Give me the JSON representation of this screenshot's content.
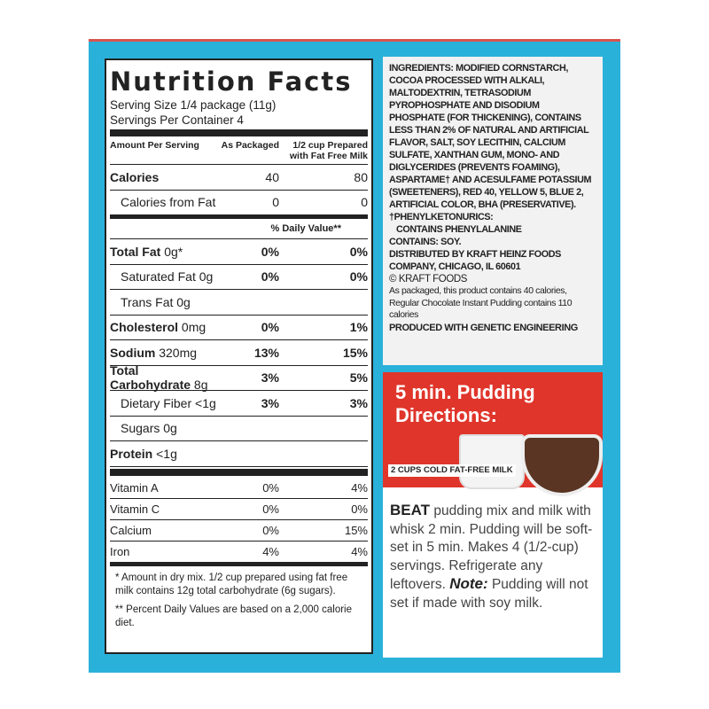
{
  "nutrition": {
    "title": "Nutrition Facts",
    "serving_size": "Serving Size 1/4 package (11g)",
    "servings": "Servings Per Container 4",
    "col_header": {
      "a": "Amount Per Serving",
      "b": "As Packaged",
      "c": "1/2 cup Prepared with Fat Free Milk"
    },
    "calories": {
      "label": "Calories",
      "b": "40",
      "c": "80"
    },
    "cal_fat": {
      "label": "Calories from Fat",
      "b": "0",
      "c": "0"
    },
    "dv_header": "% Daily Value**",
    "rows": [
      {
        "label": "Total Fat",
        "amt": "0g*",
        "b": "0%",
        "c": "0%"
      },
      {
        "label": "Saturated Fat 0g",
        "amt": "",
        "b": "0%",
        "c": "0%"
      },
      {
        "label": "Trans Fat 0g",
        "amt": "",
        "b": "",
        "c": ""
      },
      {
        "label": "Cholesterol",
        "amt": "0mg",
        "b": "0%",
        "c": "1%"
      },
      {
        "label": "Sodium",
        "amt": "320mg",
        "b": "13%",
        "c": "15%"
      },
      {
        "label": "Total Carbohydrate",
        "amt": "8g",
        "b": "3%",
        "c": "5%"
      },
      {
        "label": "Dietary Fiber <1g",
        "amt": "",
        "b": "3%",
        "c": "3%"
      },
      {
        "label": "Sugars 0g",
        "amt": "",
        "b": "",
        "c": ""
      },
      {
        "label": "Protein",
        "amt": "<1g",
        "b": "",
        "c": ""
      }
    ],
    "vitamins": [
      {
        "label": "Vitamin A",
        "b": "0%",
        "c": "4%"
      },
      {
        "label": "Vitamin C",
        "b": "0%",
        "c": "0%"
      },
      {
        "label": "Calcium",
        "b": "0%",
        "c": "15%"
      },
      {
        "label": "Iron",
        "b": "4%",
        "c": "4%"
      }
    ],
    "footnote1": "* Amount in dry mix. 1/2 cup prepared using fat free milk contains 12g total carbohydrate (6g sugars).",
    "footnote2": "** Percent Daily Values are based on a 2,000 calorie diet."
  },
  "ingredients": {
    "text": "INGREDIENTS: MODIFIED CORNSTARCH, COCOA PROCESSED WITH ALKALI, MALTODEXTRIN, TETRASODIUM PYROPHOSPHATE AND DISODIUM PHOSPHATE (FOR THICKENING), CONTAINS LESS THAN 2% OF NATURAL AND ARTIFICIAL FLAVOR, SALT, SOY LECITHIN, CALCIUM SULFATE, XANTHAN GUM, MONO- AND DIGLYCERIDES (PREVENTS FOAMING), ASPARTAME† AND ACESULFAME POTASSIUM (SWEETENERS), RED 40, YELLOW 5, BLUE 2, ARTIFICIAL COLOR, BHA (PRESERVATIVE).",
    "pku1": "†PHENYLKETONURICS:",
    "pku2": "CONTAINS PHENYLALANINE",
    "contains": "CONTAINS: SOY.",
    "distributed": "DISTRIBUTED BY KRAFT HEINZ FOODS COMPANY, CHICAGO, IL 60601",
    "copyright": "© KRAFT FOODS",
    "calorie_note": "As packaged, this product contains 40 calories, Regular Chocolate Instant Pudding contains 110 calories",
    "ge": "PRODUCED WITH GENETIC ENGINEERING"
  },
  "directions": {
    "title": "5 min. Pudding Directions:",
    "milk_label": "2 CUPS COLD FAT-FREE MILK",
    "beat": "BEAT",
    "body": "pudding mix and milk with whisk 2 min. Pudding will be soft-set in 5 min. Makes 4 (1/2-cup) servings. Refrigerate any leftovers.",
    "note_label": "Note:",
    "note": "Pudding will not set if made with soy milk.",
    "colors": {
      "panel": "#e0352b",
      "box": "#2ab1da"
    }
  }
}
